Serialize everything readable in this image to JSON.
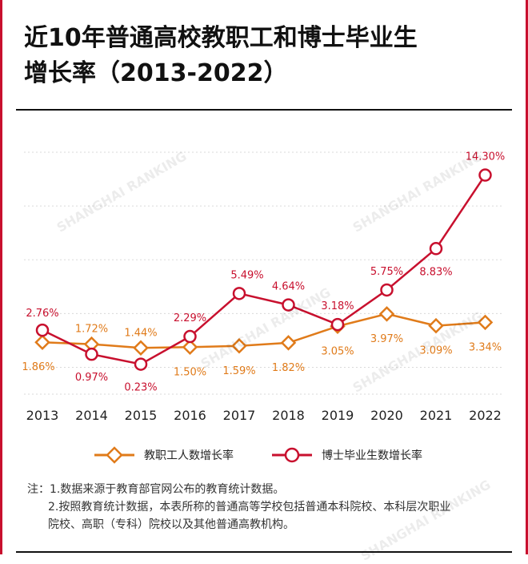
{
  "title": {
    "line1": "近10年普通高校教职工和博士毕业生",
    "line2": "增长率（2013-2022）"
  },
  "watermark_text": "SHANGHAI RANKING",
  "chart_data": {
    "type": "line",
    "categories": [
      "2013",
      "2014",
      "2015",
      "2016",
      "2017",
      "2018",
      "2019",
      "2020",
      "2021",
      "2022"
    ],
    "series": [
      {
        "name": "教职工人数增长率",
        "color": "#e07b1a",
        "marker": "diamond",
        "values": [
          1.86,
          1.72,
          1.44,
          1.5,
          1.59,
          1.82,
          3.05,
          3.97,
          3.09,
          3.34
        ],
        "labels": [
          "1.86%",
          "1.72%",
          "1.44%",
          "1.50%",
          "1.59%",
          "1.82%",
          "3.05%",
          "3.97%",
          "3.09%",
          "3.34%"
        ]
      },
      {
        "name": "博士毕业生数增长率",
        "color": "#c8102e",
        "marker": "circle",
        "values": [
          2.76,
          0.97,
          0.23,
          2.29,
          5.49,
          4.64,
          3.18,
          5.75,
          8.83,
          14.3
        ],
        "labels": [
          "2.76%",
          "0.97%",
          "0.23%",
          "2.29%",
          "5.49%",
          "4.64%",
          "3.18%",
          "5.75%",
          "8.83%",
          "14.30%"
        ]
      }
    ],
    "ylim": [
      -2,
      16
    ],
    "grid": "horizontal-dotted",
    "legend": "bottom"
  },
  "notes": {
    "line1": "注：1.数据来源于教育部官网公布的教育统计数据。",
    "line2": "2.按照教育统计数据，本表所称的普通高等学校包括普通本科院校、本科层次职业",
    "line3": "院校、高职（专科）院校以及其他普通高教机构。"
  }
}
